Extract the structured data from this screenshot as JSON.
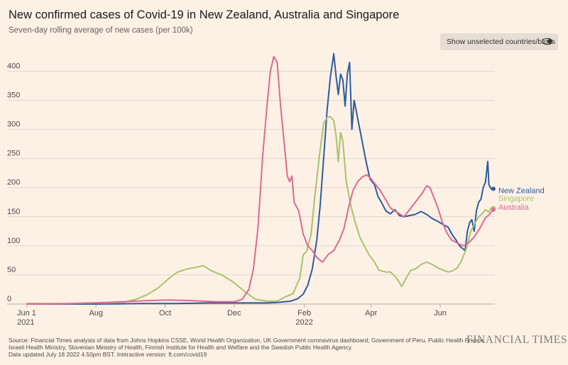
{
  "header": {
    "title": "New confirmed cases of Covid-19 in New Zealand, Australia and Singapore",
    "subtitle": "Seven-day rolling average of new cases (per 100k)",
    "toggle_label": "Show unselected countries/blocs"
  },
  "footer": {
    "source_lines": [
      "Source: Financial Times analysis of data from Johns Hopkins CSSE, World Health Organization, UK Government coronavirus dashboard, Government of Peru, Public Health France,",
      "Israeli Health Ministry, Slovenian Ministry of Health, Finnish Institute for Health and Welfare and the Swedish Public Health Agency.",
      "Data updated July 18 2022 4.50pm BST. Interactive version: ft.com/covid19"
    ],
    "logo_text": "FINANCIAL TIMES"
  },
  "colors": {
    "new_zealand": "#2e5b9e",
    "singapore": "#a9c26a",
    "australia": "#e0698f",
    "grid": "#e0d7cf",
    "background": "#fdf1e6"
  },
  "chart_data": {
    "type": "line",
    "title": "New confirmed cases of Covid-19 in New Zealand, Australia and Singapore",
    "subtitle": "Seven-day rolling average of new cases (per 100k)",
    "x_axis": {
      "type": "date",
      "min": "2021-06-01",
      "max": "2022-07-18",
      "ticks": [
        {
          "date": "2021-06-01",
          "label": "Jun 1",
          "sublabel": "2021"
        },
        {
          "date": "2021-08-01",
          "label": "Aug",
          "sublabel": ""
        },
        {
          "date": "2021-10-01",
          "label": "Oct",
          "sublabel": ""
        },
        {
          "date": "2021-12-01",
          "label": "Dec",
          "sublabel": ""
        },
        {
          "date": "2022-02-01",
          "label": "Feb",
          "sublabel": "2022"
        },
        {
          "date": "2022-04-01",
          "label": "Apr",
          "sublabel": ""
        },
        {
          "date": "2022-06-01",
          "label": "Jun",
          "sublabel": ""
        }
      ]
    },
    "y_axis": {
      "min": 0,
      "max": 420,
      "ticks": [
        0,
        50,
        100,
        150,
        200,
        250,
        300,
        350,
        400
      ]
    },
    "grid": true,
    "legend": "inline end labels",
    "series": [
      {
        "name": "New Zealand",
        "color": "#2e5b9e",
        "end_marker": true,
        "points": [
          [
            "2021-06-01",
            0
          ],
          [
            "2021-08-01",
            0
          ],
          [
            "2021-08-20",
            0.3
          ],
          [
            "2021-09-10",
            1
          ],
          [
            "2021-10-10",
            1
          ],
          [
            "2021-11-10",
            2
          ],
          [
            "2021-12-10",
            2
          ],
          [
            "2021-12-30",
            2
          ],
          [
            "2022-01-10",
            3
          ],
          [
            "2022-01-20",
            5
          ],
          [
            "2022-01-26",
            9
          ],
          [
            "2022-01-31",
            17
          ],
          [
            "2022-02-04",
            32
          ],
          [
            "2022-02-08",
            60
          ],
          [
            "2022-02-12",
            110
          ],
          [
            "2022-02-15",
            170
          ],
          [
            "2022-02-18",
            250
          ],
          [
            "2022-02-21",
            330
          ],
          [
            "2022-02-24",
            390
          ],
          [
            "2022-02-27",
            430
          ],
          [
            "2022-03-01",
            392
          ],
          [
            "2022-03-03",
            360
          ],
          [
            "2022-03-05",
            395
          ],
          [
            "2022-03-07",
            385
          ],
          [
            "2022-03-09",
            340
          ],
          [
            "2022-03-11",
            395
          ],
          [
            "2022-03-13",
            415
          ],
          [
            "2022-03-15",
            300
          ],
          [
            "2022-03-17",
            350
          ],
          [
            "2022-03-19",
            330
          ],
          [
            "2022-03-22",
            300
          ],
          [
            "2022-03-25",
            270
          ],
          [
            "2022-03-28",
            240
          ],
          [
            "2022-03-31",
            215
          ],
          [
            "2022-04-04",
            205
          ],
          [
            "2022-04-07",
            185
          ],
          [
            "2022-04-10",
            175
          ],
          [
            "2022-04-14",
            160
          ],
          [
            "2022-04-18",
            155
          ],
          [
            "2022-04-22",
            162
          ],
          [
            "2022-04-26",
            152
          ],
          [
            "2022-04-30",
            150
          ],
          [
            "2022-05-05",
            152
          ],
          [
            "2022-05-10",
            154
          ],
          [
            "2022-05-15",
            159
          ],
          [
            "2022-05-20",
            154
          ],
          [
            "2022-05-25",
            147
          ],
          [
            "2022-05-30",
            142
          ],
          [
            "2022-06-04",
            136
          ],
          [
            "2022-06-08",
            132
          ],
          [
            "2022-06-12",
            118
          ],
          [
            "2022-06-15",
            110
          ],
          [
            "2022-06-18",
            100
          ],
          [
            "2022-06-21",
            95
          ],
          [
            "2022-06-23",
            92
          ],
          [
            "2022-06-25",
            125
          ],
          [
            "2022-06-27",
            140
          ],
          [
            "2022-06-29",
            145
          ],
          [
            "2022-07-01",
            125
          ],
          [
            "2022-07-03",
            160
          ],
          [
            "2022-07-05",
            175
          ],
          [
            "2022-07-07",
            180
          ],
          [
            "2022-07-09",
            200
          ],
          [
            "2022-07-11",
            210
          ],
          [
            "2022-07-13",
            245
          ],
          [
            "2022-07-14",
            205
          ],
          [
            "2022-07-16",
            198
          ],
          [
            "2022-07-18",
            198
          ]
        ]
      },
      {
        "name": "Singapore",
        "color": "#a9c26a",
        "end_marker": true,
        "points": [
          [
            "2021-06-01",
            1
          ],
          [
            "2021-06-20",
            1
          ],
          [
            "2021-07-10",
            1
          ],
          [
            "2021-07-25",
            2
          ],
          [
            "2021-08-10",
            2
          ],
          [
            "2021-08-25",
            3
          ],
          [
            "2021-09-05",
            8
          ],
          [
            "2021-09-15",
            16
          ],
          [
            "2021-09-25",
            28
          ],
          [
            "2021-10-05",
            45
          ],
          [
            "2021-10-12",
            55
          ],
          [
            "2021-10-20",
            60
          ],
          [
            "2021-10-28",
            63
          ],
          [
            "2021-11-04",
            66
          ],
          [
            "2021-11-10",
            58
          ],
          [
            "2021-11-20",
            50
          ],
          [
            "2021-11-30",
            38
          ],
          [
            "2021-12-10",
            22
          ],
          [
            "2021-12-20",
            8
          ],
          [
            "2021-12-30",
            5
          ],
          [
            "2022-01-08",
            5
          ],
          [
            "2022-01-15",
            12
          ],
          [
            "2022-01-22",
            18
          ],
          [
            "2022-01-28",
            45
          ],
          [
            "2022-01-31",
            85
          ],
          [
            "2022-02-03",
            90
          ],
          [
            "2022-02-07",
            120
          ],
          [
            "2022-02-10",
            180
          ],
          [
            "2022-02-14",
            250
          ],
          [
            "2022-02-18",
            310
          ],
          [
            "2022-02-21",
            320
          ],
          [
            "2022-02-24",
            322
          ],
          [
            "2022-02-27",
            315
          ],
          [
            "2022-03-01",
            290
          ],
          [
            "2022-03-03",
            245
          ],
          [
            "2022-03-05",
            295
          ],
          [
            "2022-03-07",
            280
          ],
          [
            "2022-03-10",
            210
          ],
          [
            "2022-03-14",
            170
          ],
          [
            "2022-03-18",
            140
          ],
          [
            "2022-03-22",
            115
          ],
          [
            "2022-03-26",
            100
          ],
          [
            "2022-03-30",
            85
          ],
          [
            "2022-04-04",
            72
          ],
          [
            "2022-04-08",
            58
          ],
          [
            "2022-04-14",
            55
          ],
          [
            "2022-04-18",
            55
          ],
          [
            "2022-04-22",
            48
          ],
          [
            "2022-04-25",
            40
          ],
          [
            "2022-04-28",
            30
          ],
          [
            "2022-05-02",
            45
          ],
          [
            "2022-05-06",
            58
          ],
          [
            "2022-05-10",
            60
          ],
          [
            "2022-05-15",
            68
          ],
          [
            "2022-05-20",
            72
          ],
          [
            "2022-05-25",
            68
          ],
          [
            "2022-05-30",
            62
          ],
          [
            "2022-06-04",
            58
          ],
          [
            "2022-06-08",
            55
          ],
          [
            "2022-06-12",
            57
          ],
          [
            "2022-06-16",
            62
          ],
          [
            "2022-06-20",
            75
          ],
          [
            "2022-06-24",
            95
          ],
          [
            "2022-06-28",
            125
          ],
          [
            "2022-07-02",
            140
          ],
          [
            "2022-07-05",
            150
          ],
          [
            "2022-07-08",
            155
          ],
          [
            "2022-07-11",
            162
          ],
          [
            "2022-07-14",
            158
          ],
          [
            "2022-07-16",
            165
          ],
          [
            "2022-07-18",
            165
          ]
        ]
      },
      {
        "name": "Australia",
        "color": "#e0698f",
        "end_marker": true,
        "points": [
          [
            "2021-06-01",
            0
          ],
          [
            "2021-07-01",
            0.5
          ],
          [
            "2021-08-01",
            2
          ],
          [
            "2021-08-25",
            4
          ],
          [
            "2021-09-15",
            6
          ],
          [
            "2021-10-05",
            7
          ],
          [
            "2021-10-25",
            6
          ],
          [
            "2021-11-15",
            4
          ],
          [
            "2021-12-01",
            4
          ],
          [
            "2021-12-08",
            8
          ],
          [
            "2021-12-14",
            25
          ],
          [
            "2021-12-18",
            60
          ],
          [
            "2021-12-22",
            130
          ],
          [
            "2021-12-26",
            250
          ],
          [
            "2021-12-30",
            340
          ],
          [
            "2022-01-02",
            400
          ],
          [
            "2022-01-05",
            425
          ],
          [
            "2022-01-08",
            415
          ],
          [
            "2022-01-11",
            340
          ],
          [
            "2022-01-14",
            280
          ],
          [
            "2022-01-17",
            220
          ],
          [
            "2022-01-19",
            210
          ],
          [
            "2022-01-21",
            220
          ],
          [
            "2022-01-23",
            175
          ],
          [
            "2022-01-27",
            160
          ],
          [
            "2022-01-31",
            120
          ],
          [
            "2022-02-04",
            100
          ],
          [
            "2022-02-08",
            92
          ],
          [
            "2022-02-12",
            80
          ],
          [
            "2022-02-17",
            72
          ],
          [
            "2022-02-22",
            85
          ],
          [
            "2022-02-27",
            92
          ],
          [
            "2022-03-04",
            110
          ],
          [
            "2022-03-08",
            130
          ],
          [
            "2022-03-12",
            165
          ],
          [
            "2022-03-16",
            195
          ],
          [
            "2022-03-20",
            210
          ],
          [
            "2022-03-24",
            218
          ],
          [
            "2022-03-28",
            222
          ],
          [
            "2022-04-01",
            215
          ],
          [
            "2022-04-05",
            205
          ],
          [
            "2022-04-09",
            195
          ],
          [
            "2022-04-13",
            182
          ],
          [
            "2022-04-18",
            165
          ],
          [
            "2022-04-22",
            160
          ],
          [
            "2022-04-26",
            155
          ],
          [
            "2022-04-30",
            150
          ],
          [
            "2022-05-04",
            160
          ],
          [
            "2022-05-08",
            170
          ],
          [
            "2022-05-12",
            180
          ],
          [
            "2022-05-16",
            190
          ],
          [
            "2022-05-20",
            203
          ],
          [
            "2022-05-23",
            200
          ],
          [
            "2022-05-26",
            185
          ],
          [
            "2022-05-30",
            165
          ],
          [
            "2022-06-03",
            140
          ],
          [
            "2022-06-07",
            122
          ],
          [
            "2022-06-11",
            110
          ],
          [
            "2022-06-16",
            105
          ],
          [
            "2022-06-21",
            100
          ],
          [
            "2022-06-26",
            105
          ],
          [
            "2022-07-01",
            115
          ],
          [
            "2022-07-06",
            130
          ],
          [
            "2022-07-11",
            148
          ],
          [
            "2022-07-14",
            153
          ],
          [
            "2022-07-18",
            162
          ]
        ]
      }
    ]
  }
}
